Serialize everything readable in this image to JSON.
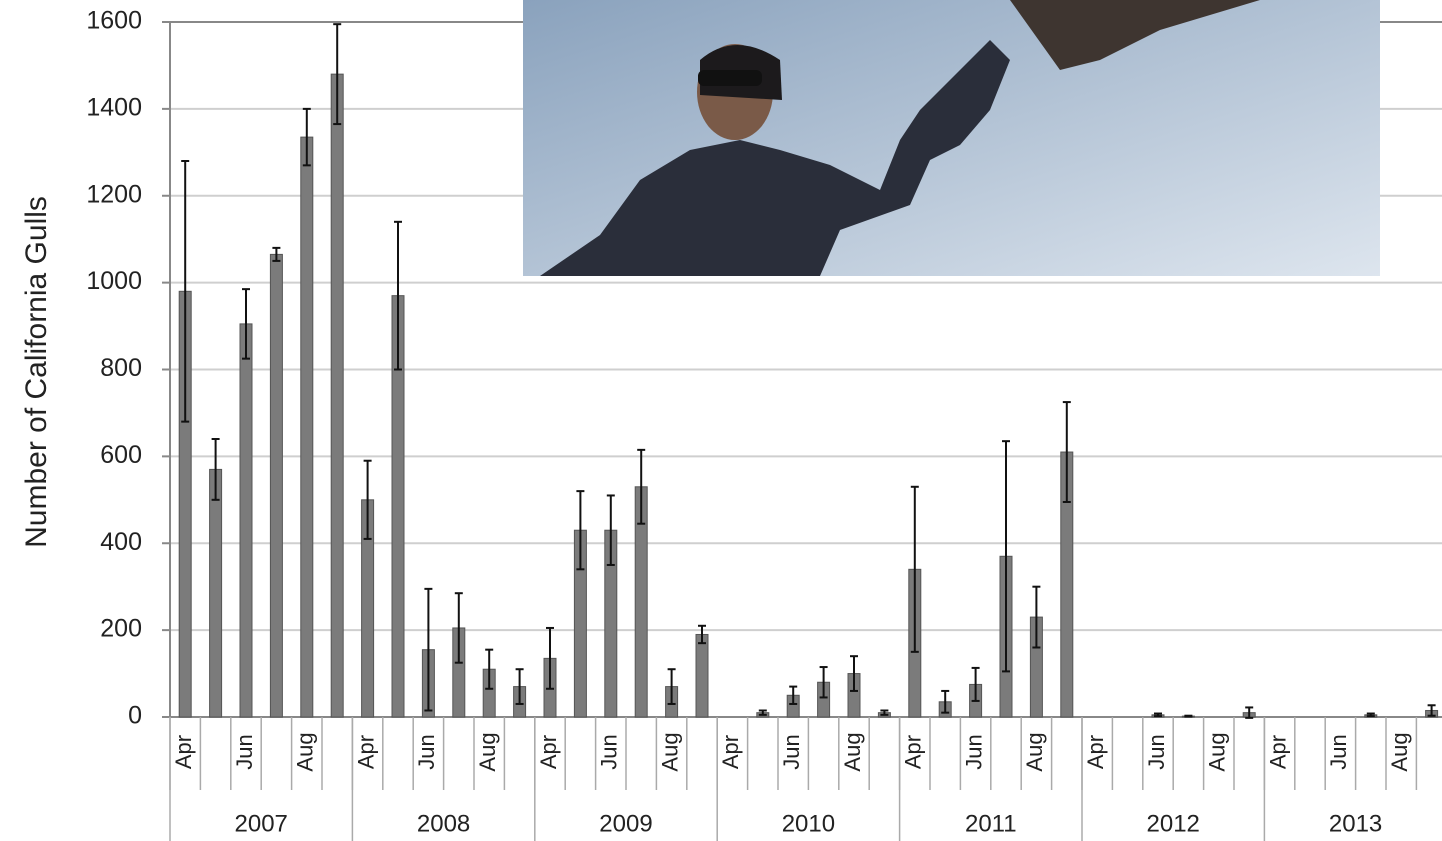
{
  "chart_data": {
    "type": "bar",
    "y_axis_label": "Number of California Gulls",
    "categories": [
      "Apr",
      null,
      "Jun",
      null,
      "Aug",
      null,
      "Apr",
      null,
      "Jun",
      null,
      "Aug",
      null,
      "Apr",
      null,
      "Jun",
      null,
      "Aug",
      null,
      "Apr",
      null,
      "Jun",
      null,
      "Aug",
      null,
      "Apr",
      null,
      "Jun",
      null,
      "Aug",
      null,
      "Apr",
      null,
      "Jun",
      null,
      "Aug",
      null,
      "Apr",
      null,
      "Jun",
      null,
      "Aug",
      null
    ],
    "years": [
      "2007",
      "2008",
      "2009",
      "2010",
      "2011",
      "2012",
      "2013"
    ],
    "series": [
      {
        "color": "#7b7b7b",
        "values": [
          980,
          570,
          905,
          1065,
          1335,
          1480,
          500,
          970,
          155,
          205,
          110,
          70,
          135,
          430,
          430,
          530,
          70,
          190,
          0,
          10,
          50,
          80,
          100,
          10,
          340,
          35,
          75,
          370,
          230,
          610,
          0,
          0,
          5,
          2,
          0,
          10,
          0,
          0,
          0,
          5,
          0,
          15
        ],
        "errors": [
          300,
          70,
          80,
          15,
          65,
          115,
          90,
          170,
          140,
          80,
          45,
          40,
          70,
          90,
          80,
          85,
          40,
          20,
          0,
          5,
          20,
          35,
          40,
          5,
          190,
          25,
          38,
          265,
          70,
          115,
          0,
          0,
          3,
          1,
          0,
          12,
          0,
          0,
          0,
          3,
          0,
          12
        ]
      }
    ],
    "ylim": [
      0,
      1600
    ],
    "yticks": [
      0,
      200,
      400,
      600,
      800,
      1000,
      1200,
      1400,
      1600
    ],
    "grid": true
  }
}
